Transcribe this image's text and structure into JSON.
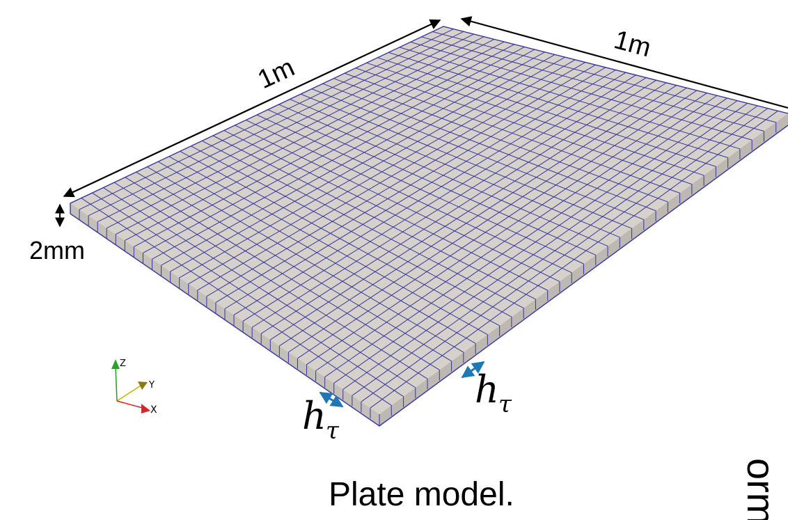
{
  "figure": {
    "top_edge_label": "1m",
    "right_edge_label": "1m",
    "thickness_label": "2mm",
    "caption": "Plate model.",
    "side_text": "orm",
    "mesh_size_symbol": "h",
    "mesh_size_subscript": "τ",
    "mesh": {
      "cells_along_left_edge": 34,
      "cells_along_front_edge": 34
    },
    "axes": {
      "z": "Z",
      "y": "Y",
      "x": "X"
    },
    "colors": {
      "plate_top": "#d6d1cb",
      "plate_side": "#c4bfb8",
      "mesh_lines": "#36369a",
      "dimension_arrows": "#000000",
      "mesh_size_arrows": "#1f77b4",
      "axis_z": "#2ca02c",
      "axis_y": "#c8b400",
      "axis_x": "#d62728"
    }
  }
}
